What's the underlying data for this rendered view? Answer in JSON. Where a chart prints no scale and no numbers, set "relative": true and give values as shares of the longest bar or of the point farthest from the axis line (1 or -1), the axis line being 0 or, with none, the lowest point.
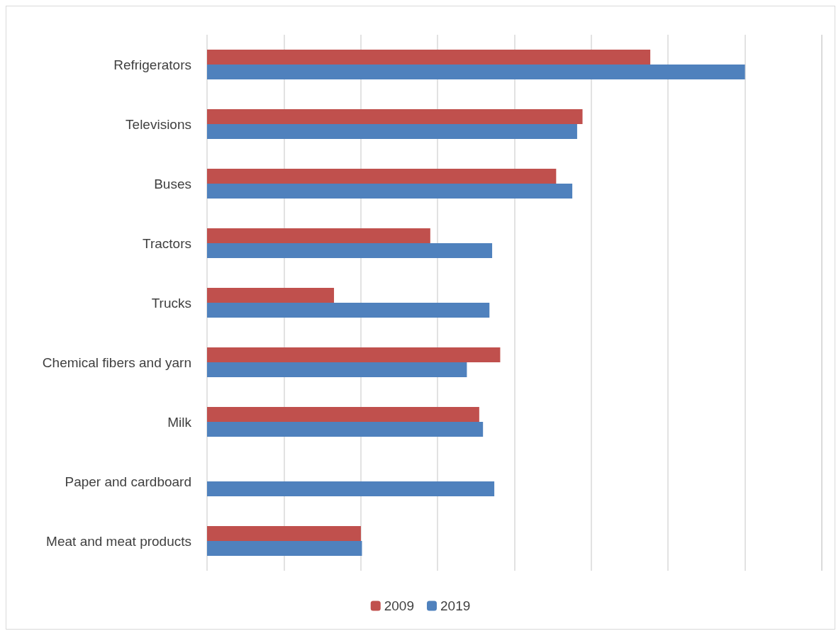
{
  "chart_data": {
    "type": "bar",
    "orientation": "horizontal",
    "relative": true,
    "categories": [
      "Refrigerators",
      "Televisions",
      "Buses",
      "Tractors",
      "Trucks",
      "Chemical fibers and yarn",
      "Milk",
      "Paper and cardboard",
      "Meat and meat products"
    ],
    "series": [
      {
        "name": "2009",
        "color": "#c0504d",
        "values": [
          0.824,
          0.698,
          0.649,
          0.415,
          0.236,
          0.545,
          0.506,
          null,
          0.286
        ]
      },
      {
        "name": "2019",
        "color": "#4f81bd",
        "values": [
          1,
          0.688,
          0.679,
          0.53,
          0.525,
          0.483,
          0.513,
          0.534,
          0.288
        ]
      }
    ],
    "grid": "x",
    "legend": "bottom"
  }
}
